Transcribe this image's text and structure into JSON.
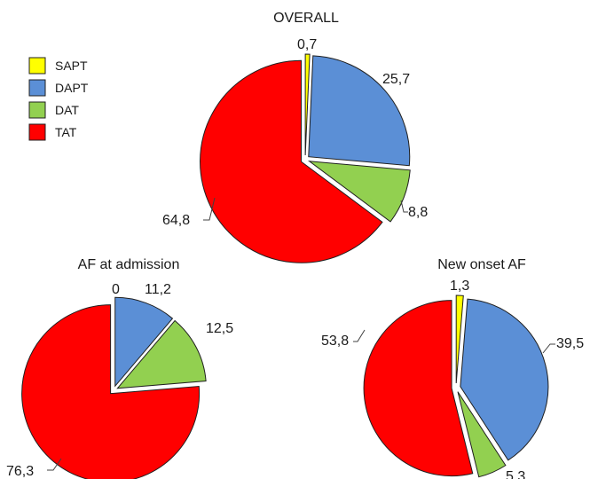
{
  "legend": [
    {
      "name": "SAPT",
      "color": "#ffff00"
    },
    {
      "name": "DAPT",
      "color": "#5b8fd6"
    },
    {
      "name": "DAT",
      "color": "#92d050"
    },
    {
      "name": "TAT",
      "color": "#ff0000"
    }
  ],
  "chart_data": [
    {
      "type": "pie",
      "title": "OVERALL",
      "categories": [
        "SAPT",
        "DAPT",
        "DAT",
        "TAT"
      ],
      "values": [
        0.7,
        25.7,
        8.8,
        64.8
      ],
      "labels": [
        "0,7",
        "25,7",
        "8,8",
        "64,8"
      ],
      "exploded": true
    },
    {
      "type": "pie",
      "title": "AF at admission",
      "categories": [
        "SAPT",
        "DAPT",
        "DAT",
        "TAT"
      ],
      "values": [
        0,
        11.2,
        12.5,
        76.3
      ],
      "labels": [
        "0",
        "11,2",
        "12,5",
        "76,3"
      ],
      "exploded": true
    },
    {
      "type": "pie",
      "title": "New onset AF",
      "categories": [
        "SAPT",
        "DAPT",
        "DAT",
        "TAT"
      ],
      "values": [
        1.3,
        39.5,
        5.3,
        53.8
      ],
      "labels": [
        "1,3",
        "39,5",
        "5,3",
        "53,8"
      ],
      "exploded": true
    }
  ]
}
